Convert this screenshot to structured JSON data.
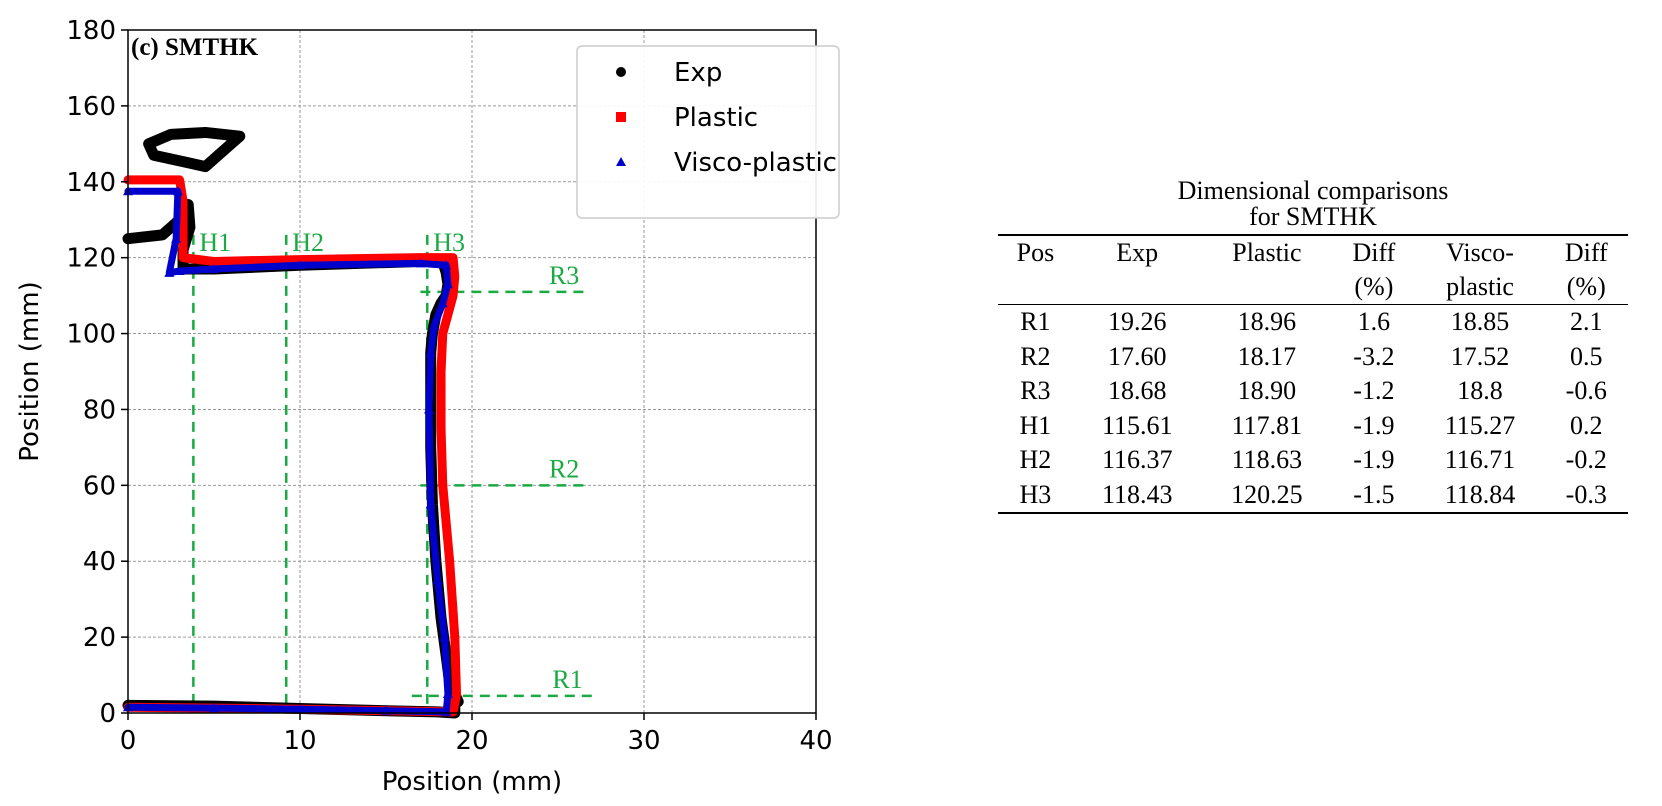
{
  "chart_data": {
    "type": "scatter",
    "title": "(c) SMTHK",
    "xlabel": "Position (mm)",
    "ylabel": "Position (mm)",
    "xlim": [
      0,
      40
    ],
    "ylim": [
      0,
      180
    ],
    "xticks": [
      "0",
      "10",
      "20",
      "30",
      "40"
    ],
    "yticks": [
      "0",
      "20",
      "40",
      "60",
      "80",
      "100",
      "120",
      "140",
      "160",
      "180"
    ],
    "grid": true,
    "legend_position": "top-right",
    "colors": {
      "Exp": "#000000",
      "Plastic": "#ff0000",
      "Visco-plastic": "#0000cc",
      "guides": "#1aaa44"
    },
    "series": [
      {
        "name": "Exp",
        "marker": "circle",
        "x": [
          19.2,
          18.7,
          18.5,
          18.2,
          17.9,
          17.7,
          17.6,
          17.6,
          17.6,
          17.7,
          17.9,
          18.2,
          18.5,
          18.6,
          18.5,
          18.3,
          17.0,
          10.0,
          5.0,
          3.2,
          3.2,
          3.6,
          3.5,
          3.0,
          2.0,
          0.0
        ],
        "y": [
          3,
          8,
          15,
          25,
          40,
          55,
          70,
          85,
          95,
          100,
          105,
          108,
          110,
          113,
          116,
          119,
          119,
          118,
          117,
          117,
          122,
          128,
          134,
          130,
          126,
          125
        ]
      },
      {
        "name": "Exp",
        "marker": "circle",
        "x": [
          0.0,
          5.0,
          10.0,
          15.0,
          18.0,
          19.0,
          19.0
        ],
        "y": [
          2.0,
          1.8,
          1.2,
          0.6,
          0.3,
          0.0,
          3.0
        ]
      },
      {
        "name": "Exp",
        "marker": "circle",
        "x": [
          1.2,
          2.5,
          4.5,
          6.5,
          5.5,
          4.5,
          3.5,
          2.5,
          1.5,
          1.2
        ],
        "y": [
          150,
          152.5,
          153,
          152,
          148,
          144,
          145,
          146,
          147,
          150
        ]
      },
      {
        "name": "Plastic",
        "marker": "square",
        "x": [
          0.0,
          5.0,
          10.0,
          15.0,
          18.9,
          19.1,
          19.0,
          18.7,
          18.3,
          18.2,
          18.2,
          18.3,
          18.6,
          18.9,
          19.0,
          18.9,
          17.0,
          10.0,
          5.0,
          3.2,
          3.2,
          3.0,
          0.0
        ],
        "y": [
          1.5,
          1.3,
          1.0,
          0.6,
          0.3,
          5.0,
          20.0,
          40.0,
          60.0,
          75.0,
          90.0,
          100.0,
          105.0,
          110.0,
          115.0,
          120.0,
          120.0,
          119.5,
          119.0,
          120.0,
          135.0,
          140.5,
          140.5
        ]
      },
      {
        "name": "Visco-plastic",
        "marker": "triangle",
        "x": [
          0.0,
          5.0,
          10.0,
          15.0,
          18.5,
          18.6,
          18.4,
          18.0,
          17.6,
          17.5,
          17.6,
          17.8,
          18.3,
          18.6,
          18.5,
          17.0,
          10.0,
          5.0,
          3.0,
          2.4,
          2.8,
          2.9,
          0.0
        ],
        "y": [
          1.5,
          1.3,
          1.0,
          0.6,
          0.3,
          5.0,
          20.0,
          35.0,
          55.0,
          80.0,
          95.0,
          102.0,
          108.0,
          113.0,
          118.0,
          118.5,
          118.0,
          117.0,
          116.5,
          116.0,
          125.0,
          137.5,
          137.5
        ]
      }
    ],
    "annotations": [
      {
        "label": "H1",
        "x": 3.8,
        "y_top": 126
      },
      {
        "label": "H2",
        "x": 9.2,
        "y_top": 126
      },
      {
        "label": "H3",
        "x": 17.4,
        "y_top": 126
      },
      {
        "label": "R3",
        "y": 111,
        "x_start": 17.0,
        "x_end": 26.8
      },
      {
        "label": "R2",
        "y": 60,
        "x_start": 17.0,
        "x_end": 26.8
      },
      {
        "label": "R1",
        "y": 4.5,
        "x_start": 16.5,
        "x_end": 27.0
      }
    ]
  },
  "table": {
    "title_line1": "Dimensional comparisons",
    "title_line2": "for SMTHK",
    "headers": [
      [
        "Pos",
        ""
      ],
      [
        "Exp",
        ""
      ],
      [
        "Plastic",
        ""
      ],
      [
        "Diff",
        "(%)"
      ],
      [
        "Visco-",
        "plastic"
      ],
      [
        "Diff",
        "(%)"
      ]
    ],
    "rows": [
      [
        "R1",
        "19.26",
        "18.96",
        "1.6",
        "18.85",
        "2.1"
      ],
      [
        "R2",
        "17.60",
        "18.17",
        "-3.2",
        "17.52",
        "0.5"
      ],
      [
        "R3",
        "18.68",
        "18.90",
        "-1.2",
        "18.8",
        "-0.6"
      ],
      [
        "H1",
        "115.61",
        "117.81",
        "-1.9",
        "115.27",
        "0.2"
      ],
      [
        "H2",
        "116.37",
        "118.63",
        "-1.9",
        "116.71",
        "-0.2"
      ],
      [
        "H3",
        "118.43",
        "120.25",
        "-1.5",
        "118.84",
        "-0.3"
      ]
    ]
  }
}
